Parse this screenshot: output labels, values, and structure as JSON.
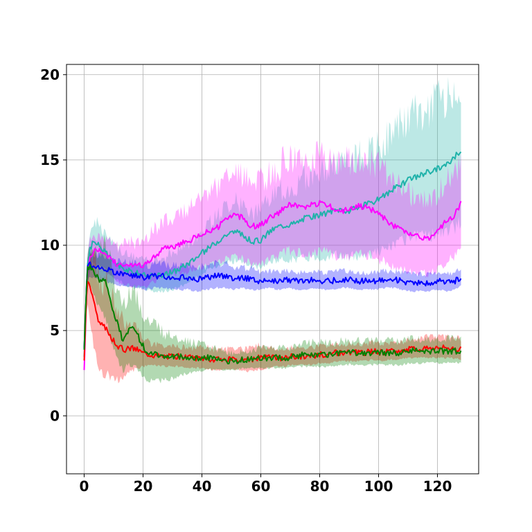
{
  "chart_data": {
    "type": "line",
    "title": "",
    "xlabel": "",
    "ylabel": "",
    "xlim": [
      -6,
      134
    ],
    "ylim": [
      -3.4,
      20.6
    ],
    "grid": true,
    "x_ticks": [
      0,
      20,
      40,
      60,
      80,
      100,
      120
    ],
    "y_ticks": [
      0,
      5,
      10,
      15,
      20
    ],
    "x_tick_labels": [
      "0",
      "20",
      "40",
      "60",
      "80",
      "100",
      "120"
    ],
    "y_tick_labels": [
      "0",
      "5",
      "10",
      "15",
      "20"
    ],
    "series": [
      {
        "color": "#20b2aa",
        "band_color": "#20b2aa",
        "x": [
          0,
          1,
          2,
          3,
          5,
          7,
          9,
          11,
          13,
          15,
          18,
          21,
          24,
          27,
          30,
          33,
          36,
          39,
          42,
          45,
          48,
          51,
          54,
          57,
          60,
          63,
          66,
          69,
          72,
          75,
          78,
          81,
          84,
          87,
          90,
          93,
          96,
          99,
          102,
          105,
          108,
          111,
          114,
          117,
          120,
          123,
          126,
          128
        ],
        "y": [
          3.6,
          8.5,
          9.8,
          10.2,
          10.0,
          9.6,
          9.2,
          8.9,
          8.7,
          8.5,
          8.4,
          8.2,
          8.2,
          8.3,
          8.4,
          8.7,
          9.0,
          9.4,
          9.8,
          10.2,
          10.6,
          10.8,
          10.6,
          10.2,
          10.3,
          10.8,
          11.1,
          11.2,
          11.3,
          11.6,
          11.7,
          11.8,
          12.0,
          12.1,
          12.0,
          12.2,
          12.4,
          12.6,
          12.9,
          13.3,
          13.6,
          13.9,
          14.1,
          14.3,
          14.5,
          14.7,
          15.2,
          15.6
        ],
        "lower": [
          3.4,
          7.5,
          8.6,
          9.0,
          8.9,
          8.6,
          8.3,
          8.0,
          7.8,
          7.6,
          7.5,
          7.4,
          7.3,
          7.3,
          7.4,
          7.6,
          7.9,
          8.2,
          8.5,
          8.8,
          9.0,
          9.1,
          9.0,
          8.7,
          8.7,
          9.0,
          9.1,
          9.2,
          9.2,
          9.3,
          9.3,
          9.3,
          9.4,
          9.4,
          9.3,
          9.4,
          9.5,
          9.6,
          9.7,
          10.0,
          10.2,
          10.4,
          10.5,
          10.6,
          10.7,
          10.8,
          11.1,
          11.4
        ],
        "upper": [
          3.8,
          9.5,
          11.0,
          11.4,
          11.2,
          10.7,
          10.2,
          9.8,
          9.6,
          9.4,
          9.3,
          9.1,
          9.1,
          9.3,
          9.5,
          9.9,
          10.2,
          10.7,
          11.2,
          11.7,
          12.3,
          12.6,
          12.3,
          11.8,
          12.0,
          12.7,
          13.1,
          13.3,
          13.5,
          14.0,
          14.2,
          14.4,
          14.7,
          14.9,
          14.8,
          15.1,
          15.4,
          15.7,
          16.2,
          16.7,
          17.1,
          17.5,
          17.8,
          18.1,
          18.4,
          18.7,
          19.2,
          19.8
        ]
      },
      {
        "color": "#ff00ff",
        "band_color": "#ff00ff",
        "x": [
          0,
          1,
          2,
          3,
          5,
          7,
          9,
          11,
          13,
          15,
          18,
          21,
          24,
          27,
          30,
          33,
          36,
          39,
          42,
          45,
          48,
          51,
          54,
          57,
          60,
          63,
          66,
          69,
          72,
          75,
          78,
          81,
          84,
          87,
          90,
          93,
          96,
          99,
          102,
          105,
          108,
          111,
          114,
          117,
          120,
          123,
          126,
          128
        ],
        "y": [
          2.6,
          8.5,
          9.4,
          9.6,
          9.7,
          9.5,
          9.2,
          8.9,
          8.8,
          8.9,
          8.8,
          8.9,
          9.3,
          9.8,
          9.9,
          10.1,
          10.3,
          10.6,
          10.8,
          11.0,
          11.5,
          11.8,
          11.6,
          11.1,
          11.2,
          11.6,
          11.9,
          12.4,
          12.3,
          12.2,
          12.4,
          12.5,
          12.2,
          12.0,
          12.1,
          12.3,
          12.2,
          12.0,
          11.6,
          11.1,
          10.9,
          10.6,
          10.5,
          10.3,
          10.8,
          11.4,
          11.8,
          12.5
        ],
        "lower": [
          2.4,
          7.6,
          8.5,
          8.7,
          8.8,
          8.5,
          8.2,
          7.9,
          7.7,
          7.7,
          7.6,
          7.6,
          7.9,
          8.2,
          8.3,
          8.4,
          8.5,
          8.7,
          8.8,
          8.9,
          9.2,
          9.4,
          9.2,
          8.8,
          8.8,
          9.1,
          9.3,
          9.7,
          9.6,
          9.5,
          9.6,
          9.7,
          9.4,
          9.3,
          9.3,
          9.5,
          9.4,
          9.3,
          9.0,
          8.7,
          8.6,
          8.5,
          8.4,
          8.3,
          8.6,
          9.0,
          9.4,
          9.8
        ],
        "upper": [
          2.8,
          9.4,
          10.3,
          10.5,
          10.6,
          10.5,
          10.3,
          10.0,
          10.0,
          10.2,
          10.1,
          10.3,
          10.9,
          11.5,
          11.7,
          12.0,
          12.3,
          12.7,
          13.0,
          13.3,
          13.9,
          14.3,
          14.1,
          13.5,
          13.7,
          14.2,
          14.6,
          15.2,
          15.1,
          15.0,
          15.3,
          15.4,
          15.1,
          14.8,
          14.9,
          15.2,
          15.1,
          14.8,
          14.3,
          13.6,
          13.3,
          12.9,
          12.7,
          12.5,
          13.1,
          13.8,
          14.3,
          15.0
        ]
      },
      {
        "color": "#0000ff",
        "band_color": "#0000ff",
        "x": [
          0,
          1,
          2,
          3,
          5,
          7,
          9,
          11,
          13,
          15,
          18,
          21,
          24,
          27,
          30,
          33,
          36,
          39,
          42,
          45,
          48,
          51,
          54,
          57,
          60,
          63,
          66,
          69,
          72,
          75,
          78,
          81,
          84,
          87,
          90,
          93,
          96,
          99,
          102,
          105,
          108,
          111,
          114,
          117,
          120,
          123,
          126,
          128
        ],
        "y": [
          4.0,
          8.6,
          8.9,
          8.8,
          8.7,
          8.6,
          8.5,
          8.4,
          8.3,
          8.3,
          8.2,
          8.1,
          8.2,
          8.2,
          8.1,
          8.1,
          8.1,
          8.0,
          8.1,
          8.2,
          8.2,
          8.0,
          8.1,
          8.0,
          7.9,
          8.0,
          7.9,
          8.0,
          7.9,
          7.9,
          8.0,
          7.9,
          7.9,
          8.0,
          8.0,
          7.9,
          7.9,
          7.9,
          8.0,
          8.0,
          7.9,
          7.8,
          7.8,
          7.8,
          7.9,
          7.8,
          7.9,
          8.1
        ],
        "lower": [
          3.8,
          7.8,
          8.2,
          8.1,
          8.0,
          7.9,
          7.8,
          7.7,
          7.6,
          7.6,
          7.5,
          7.4,
          7.5,
          7.5,
          7.4,
          7.4,
          7.4,
          7.3,
          7.4,
          7.5,
          7.5,
          7.4,
          7.5,
          7.4,
          7.4,
          7.5,
          7.4,
          7.5,
          7.4,
          7.4,
          7.5,
          7.4,
          7.4,
          7.5,
          7.5,
          7.4,
          7.4,
          7.4,
          7.5,
          7.5,
          7.4,
          7.3,
          7.3,
          7.3,
          7.4,
          7.3,
          7.4,
          7.6
        ],
        "upper": [
          4.2,
          9.4,
          9.6,
          9.5,
          9.4,
          9.3,
          9.2,
          9.1,
          9.0,
          9.0,
          8.9,
          8.8,
          8.9,
          8.9,
          8.8,
          8.8,
          8.8,
          8.7,
          8.8,
          8.9,
          8.9,
          8.6,
          8.7,
          8.6,
          8.4,
          8.5,
          8.4,
          8.5,
          8.4,
          8.4,
          8.5,
          8.4,
          8.4,
          8.5,
          8.5,
          8.4,
          8.4,
          8.4,
          8.5,
          8.5,
          8.4,
          8.3,
          8.3,
          8.3,
          8.4,
          8.3,
          8.4,
          8.6
        ]
      },
      {
        "color": "#ff0000",
        "band_color": "#ff0000",
        "x": [
          0,
          1,
          2,
          3,
          4,
          5,
          6,
          7,
          8,
          9,
          10,
          11,
          12,
          14,
          16,
          18,
          20,
          23,
          26,
          29,
          32,
          35,
          38,
          41,
          44,
          47,
          50,
          53,
          56,
          59,
          62,
          65,
          68,
          71,
          74,
          77,
          80,
          83,
          86,
          89,
          92,
          95,
          98,
          101,
          104,
          107,
          110,
          113,
          116,
          119,
          122,
          125,
          128
        ],
        "y": [
          3.4,
          8.0,
          7.6,
          7.0,
          6.1,
          5.5,
          5.3,
          5.2,
          5.0,
          4.7,
          4.4,
          4.2,
          4.0,
          3.9,
          4.0,
          3.9,
          3.7,
          3.6,
          3.5,
          3.5,
          3.5,
          3.4,
          3.4,
          3.4,
          3.3,
          3.3,
          3.3,
          3.3,
          3.3,
          3.4,
          3.4,
          3.4,
          3.4,
          3.5,
          3.5,
          3.5,
          3.6,
          3.6,
          3.7,
          3.7,
          3.7,
          3.7,
          3.8,
          3.7,
          3.8,
          3.8,
          3.9,
          3.9,
          4.0,
          4.0,
          4.0,
          4.0,
          3.9
        ],
        "lower": [
          3.2,
          6.8,
          5.4,
          4.4,
          3.4,
          2.8,
          2.6,
          2.5,
          2.4,
          2.3,
          2.2,
          2.1,
          2.1,
          2.3,
          2.6,
          2.8,
          2.9,
          3.0,
          2.9,
          2.9,
          2.9,
          2.8,
          2.8,
          2.8,
          2.7,
          2.7,
          2.7,
          2.7,
          2.6,
          2.7,
          2.8,
          2.9,
          2.9,
          3.0,
          3.0,
          3.0,
          3.1,
          3.1,
          3.2,
          3.2,
          3.2,
          3.2,
          3.3,
          3.2,
          3.3,
          3.3,
          3.4,
          3.4,
          3.4,
          3.4,
          3.4,
          3.4,
          3.3
        ],
        "upper": [
          3.6,
          9.2,
          9.8,
          9.6,
          8.8,
          8.2,
          8.0,
          7.9,
          7.6,
          7.1,
          6.6,
          6.3,
          5.9,
          5.5,
          5.4,
          5.0,
          4.5,
          4.2,
          4.1,
          4.1,
          4.1,
          4.0,
          4.0,
          4.0,
          3.9,
          3.9,
          3.9,
          3.9,
          4.0,
          4.1,
          4.0,
          3.9,
          3.9,
          4.0,
          4.0,
          4.0,
          4.1,
          4.1,
          4.2,
          4.2,
          4.2,
          4.2,
          4.3,
          4.2,
          4.3,
          4.3,
          4.4,
          4.4,
          4.6,
          4.6,
          4.6,
          4.6,
          4.5
        ]
      },
      {
        "color": "#008000",
        "band_color": "#008000",
        "x": [
          0,
          1,
          2,
          3,
          4,
          5,
          6,
          7,
          8,
          9,
          10,
          11,
          12,
          13,
          15,
          17,
          19,
          21,
          24,
          27,
          30,
          33,
          36,
          39,
          42,
          45,
          48,
          51,
          54,
          57,
          60,
          63,
          66,
          69,
          72,
          75,
          78,
          81,
          84,
          87,
          90,
          93,
          96,
          99,
          102,
          105,
          108,
          111,
          114,
          117,
          120,
          123,
          126,
          128
        ],
        "y": [
          3.8,
          8.6,
          8.7,
          8.6,
          8.3,
          8.0,
          8.0,
          7.9,
          7.5,
          6.8,
          6.0,
          5.6,
          5.0,
          4.5,
          5.0,
          5.2,
          4.4,
          3.8,
          3.6,
          3.5,
          3.5,
          3.5,
          3.4,
          3.4,
          3.4,
          3.3,
          3.2,
          3.2,
          3.3,
          3.3,
          3.4,
          3.4,
          3.4,
          3.4,
          3.5,
          3.6,
          3.6,
          3.6,
          3.6,
          3.7,
          3.7,
          3.7,
          3.7,
          3.7,
          3.7,
          3.7,
          3.7,
          3.8,
          3.8,
          3.8,
          3.8,
          3.8,
          3.8,
          3.8
        ],
        "lower": [
          3.6,
          7.8,
          7.6,
          7.2,
          6.8,
          6.3,
          6.1,
          5.8,
          5.3,
          4.6,
          3.9,
          3.4,
          3.0,
          2.7,
          2.9,
          3.0,
          2.4,
          2.1,
          2.0,
          2.1,
          2.2,
          2.4,
          2.5,
          2.6,
          2.7,
          2.7,
          2.7,
          2.7,
          2.8,
          2.8,
          2.8,
          2.8,
          2.8,
          2.8,
          2.9,
          2.9,
          2.9,
          2.9,
          2.9,
          3.0,
          3.0,
          3.0,
          3.0,
          3.0,
          3.0,
          3.0,
          3.0,
          3.1,
          3.1,
          3.1,
          3.1,
          3.1,
          3.1,
          3.1
        ],
        "upper": [
          4.0,
          9.4,
          9.8,
          10.0,
          9.8,
          9.7,
          9.9,
          10.0,
          9.7,
          9.0,
          8.1,
          7.8,
          7.0,
          6.3,
          7.1,
          7.4,
          6.4,
          5.5,
          5.2,
          4.9,
          4.8,
          4.6,
          4.3,
          4.2,
          4.1,
          3.9,
          3.7,
          3.7,
          3.8,
          3.8,
          4.0,
          4.0,
          4.0,
          4.0,
          4.1,
          4.3,
          4.3,
          4.3,
          4.3,
          4.4,
          4.4,
          4.4,
          4.4,
          4.4,
          4.4,
          4.4,
          4.4,
          4.5,
          4.5,
          4.5,
          4.5,
          4.5,
          4.5,
          4.5
        ]
      }
    ]
  }
}
